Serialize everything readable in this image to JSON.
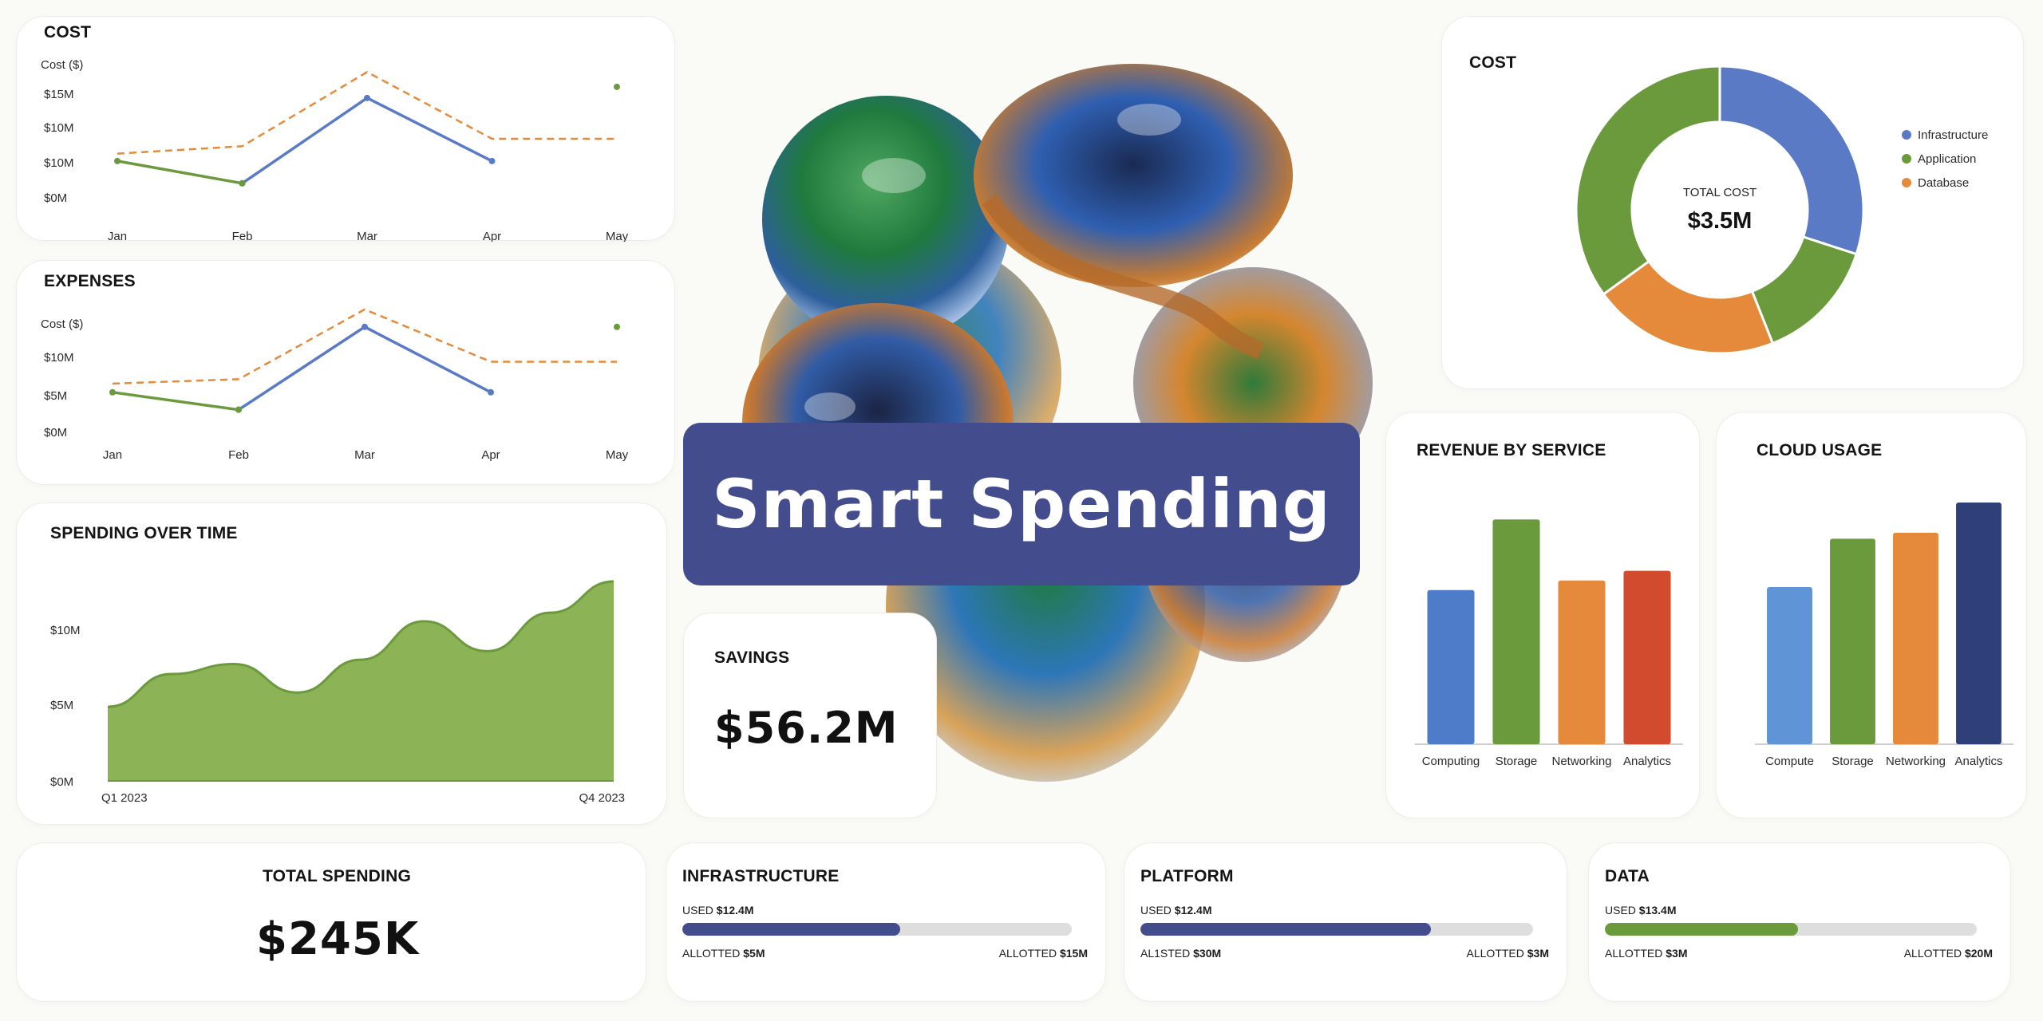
{
  "hero": {
    "title": "Smart Spending"
  },
  "colors": {
    "blue": "#5b7ac6",
    "green": "#6b9a3c",
    "orange": "#e58a3a",
    "navy": "#434c8d",
    "area_fill": "#8db357",
    "red": "#d24b2f"
  },
  "cost_line": {
    "title": "COST",
    "ylabel": "Cost ($)",
    "y_ticks": [
      "$15M",
      "$10M",
      "$10M",
      "$0M"
    ]
  },
  "expenses_line": {
    "title": "EXPENSES",
    "ylabel": "Cost ($)",
    "y_ticks": [
      "$10M",
      "$5M",
      "$0M"
    ]
  },
  "spending_time": {
    "title": "SPENDING OVER TIME",
    "y_ticks": [
      "$10M",
      "$5M",
      "$0M"
    ]
  },
  "cost_donut": {
    "title": "COST",
    "center_label": "TOTAL COST",
    "center_value": "$3.5M"
  },
  "revenue_bar": {
    "title": "REVENUE BY SERVICE"
  },
  "cloud_bar": {
    "title": "CLOUD USAGE"
  },
  "savings": {
    "title": "SAVINGS",
    "value": "$56.2M"
  },
  "total_spending": {
    "title": "TOTAL SPENDING",
    "value": "$245K"
  },
  "budgets": [
    {
      "title": "INFRASTRUCTURE",
      "used_label": "USED",
      "used_value": "$12.4M",
      "left_label": "ALLOTTED",
      "left_value": "$5M",
      "right_label": "ALLOTTED",
      "right_value": "$15M",
      "fill": 0.56,
      "color": "#434c8d"
    },
    {
      "title": "PLATFORM",
      "used_label": "USED",
      "used_value": "$12.4M",
      "left_label": "AL1STED",
      "left_value": "$30M",
      "right_label": "ALLOTTED",
      "right_value": "$3M",
      "fill": 0.74,
      "color": "#434c8d"
    },
    {
      "title": "DATA",
      "used_label": "USED",
      "used_value": "$13.4M",
      "left_label": "ALLOTTED",
      "left_value": "$3M",
      "right_label": "ALLOTTED",
      "right_value": "$20M",
      "fill": 0.52,
      "color": "#6b9a3c"
    }
  ],
  "chart_data": [
    {
      "type": "line",
      "title": "COST",
      "ylabel": "Cost ($)",
      "x": [
        "Jan",
        "Feb",
        "Mar",
        "Apr",
        "May"
      ],
      "ylim": [
        0,
        20
      ],
      "series": [
        {
          "values": [
            null,
            4,
            15.5,
            7,
            null
          ],
          "style": "solid",
          "color": "#5b7ac6"
        },
        {
          "values": [
            7,
            4,
            null,
            null,
            17
          ],
          "style": "solid",
          "color": "#6b9a3c"
        },
        {
          "values": [
            8,
            9,
            19,
            10,
            10
          ],
          "style": "dashed",
          "color": "#e58a3a"
        }
      ],
      "grid": false
    },
    {
      "type": "line",
      "title": "EXPENSES",
      "ylabel": "Cost ($)",
      "x": [
        "Jan",
        "Feb",
        "Mar",
        "Apr",
        "May"
      ],
      "ylim": [
        0,
        15
      ],
      "series": [
        {
          "values": [
            null,
            2.5,
            12,
            4.5,
            null
          ],
          "style": "solid",
          "color": "#5b7ac6"
        },
        {
          "values": [
            4.5,
            2.5,
            null,
            null,
            12
          ],
          "style": "solid",
          "color": "#6b9a3c"
        },
        {
          "values": [
            5.5,
            6,
            14,
            8,
            8
          ],
          "style": "dashed",
          "color": "#e58a3a"
        }
      ],
      "grid": false
    },
    {
      "type": "area",
      "title": "SPENDING OVER TIME",
      "x_labels": [
        "Q1 2023",
        "Q4 2023"
      ],
      "ylim": [
        0,
        15
      ],
      "values": [
        5.2,
        7.5,
        8.2,
        6.2,
        8.5,
        11.2,
        9.1,
        11.8,
        14.0
      ],
      "color": "#8db357",
      "grid": false
    },
    {
      "type": "pie",
      "title": "COST",
      "donut": true,
      "center_label": "TOTAL COST",
      "center_value": "$3.5M",
      "legend": "right",
      "slices": [
        {
          "label": "Infrastructure",
          "value": 30,
          "color": "#5b7ac6"
        },
        {
          "label": "Application",
          "value": 14,
          "color": "#6b9a3c"
        },
        {
          "label": "Database",
          "value": 21,
          "color": "#e58a3a"
        },
        {
          "label": "Application",
          "value": 35,
          "color": "#6b9a3c"
        }
      ]
    },
    {
      "type": "bar",
      "title": "REVENUE BY SERVICE",
      "categories": [
        "Computing",
        "Storage",
        "Networking",
        "Analytics"
      ],
      "values": [
        48,
        70,
        51,
        54
      ],
      "colors": [
        "#4f7cc9",
        "#6b9a3c",
        "#e58a3a",
        "#d24b2f"
      ],
      "ylim": [
        0,
        80
      ]
    },
    {
      "type": "bar",
      "title": "CLOUD USAGE",
      "categories": [
        "Compute",
        "Storage",
        "Networking",
        "Analytics"
      ],
      "values": [
        52,
        68,
        70,
        80
      ],
      "colors": [
        "#5f95d6",
        "#6b9a3c",
        "#e58a3a",
        "#2f3f78"
      ],
      "ylim": [
        0,
        85
      ]
    }
  ]
}
